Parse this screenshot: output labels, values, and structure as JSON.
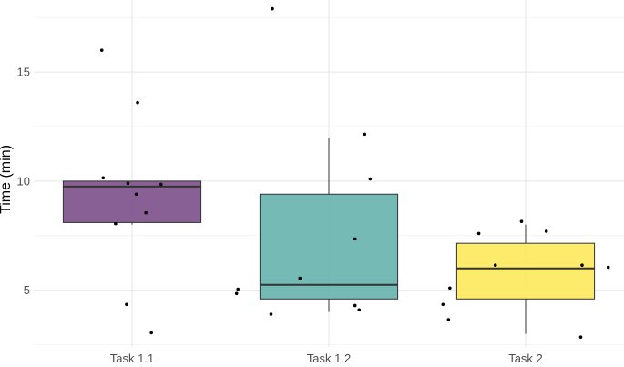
{
  "chart_data": {
    "type": "boxplot",
    "title": "",
    "xlabel": "",
    "ylabel": "Time (min)",
    "ylim": [
      2.4,
      18.3
    ],
    "yticks": [
      5,
      10,
      15
    ],
    "grid": true,
    "legend": "none",
    "categories": [
      "Task 1.1",
      "Task 1.2",
      "Task 2"
    ],
    "colors": [
      "#7b4f8a",
      "#67b3ad",
      "#fde95c"
    ],
    "boxes": [
      {
        "category": "Task 1.1",
        "q1": 8.1,
        "median": 9.75,
        "q3": 10.0,
        "whisker_low": 8.0,
        "whisker_high": 10.0
      },
      {
        "category": "Task 1.2",
        "q1": 4.6,
        "median": 5.25,
        "q3": 9.4,
        "whisker_low": 4.0,
        "whisker_high": 12.0
      },
      {
        "category": "Task 2",
        "q1": 4.6,
        "median": 6.0,
        "q3": 7.15,
        "whisker_low": 3.0,
        "whisker_high": 8.0
      }
    ],
    "points": [
      {
        "category": "Task 1.1",
        "jitter": -0.22,
        "y": 16.0
      },
      {
        "category": "Task 1.1",
        "jitter": -0.21,
        "y": 10.15
      },
      {
        "category": "Task 1.1",
        "jitter": -0.03,
        "y": 9.9
      },
      {
        "category": "Task 1.1",
        "jitter": 0.03,
        "y": 9.4
      },
      {
        "category": "Task 1.1",
        "jitter": 0.04,
        "y": 13.6
      },
      {
        "category": "Task 1.1",
        "jitter": 0.21,
        "y": 9.85
      },
      {
        "category": "Task 1.1",
        "jitter": 0.1,
        "y": 8.55
      },
      {
        "category": "Task 1.1",
        "jitter": -0.12,
        "y": 8.05
      },
      {
        "category": "Task 1.1",
        "jitter": -0.04,
        "y": 4.35
      },
      {
        "category": "Task 1.1",
        "jitter": 0.14,
        "y": 3.05
      },
      {
        "category": "Task 1.2",
        "jitter": -0.41,
        "y": 17.9
      },
      {
        "category": "Task 1.2",
        "jitter": 0.26,
        "y": 12.15
      },
      {
        "category": "Task 1.2",
        "jitter": 0.3,
        "y": 10.1
      },
      {
        "category": "Task 1.2",
        "jitter": 0.19,
        "y": 7.35
      },
      {
        "category": "Task 1.2",
        "jitter": -0.21,
        "y": 5.55
      },
      {
        "category": "Task 1.2",
        "jitter": -0.66,
        "y": 5.05
      },
      {
        "category": "Task 1.2",
        "jitter": -0.67,
        "y": 4.85
      },
      {
        "category": "Task 1.2",
        "jitter": 0.19,
        "y": 4.3
      },
      {
        "category": "Task 1.2",
        "jitter": 0.22,
        "y": 4.1
      },
      {
        "category": "Task 1.2",
        "jitter": -0.42,
        "y": 3.9
      },
      {
        "category": "Task 2",
        "jitter": -0.34,
        "y": 7.6
      },
      {
        "category": "Task 2",
        "jitter": -0.03,
        "y": 8.15
      },
      {
        "category": "Task 2",
        "jitter": 0.15,
        "y": 7.7
      },
      {
        "category": "Task 2",
        "jitter": -0.22,
        "y": 6.15
      },
      {
        "category": "Task 2",
        "jitter": 0.41,
        "y": 6.15
      },
      {
        "category": "Task 2",
        "jitter": 0.6,
        "y": 6.05
      },
      {
        "category": "Task 2",
        "jitter": -0.55,
        "y": 5.1
      },
      {
        "category": "Task 2",
        "jitter": -0.6,
        "y": 4.35
      },
      {
        "category": "Task 2",
        "jitter": -0.56,
        "y": 3.65
      },
      {
        "category": "Task 2",
        "jitter": 0.4,
        "y": 2.85
      }
    ]
  }
}
